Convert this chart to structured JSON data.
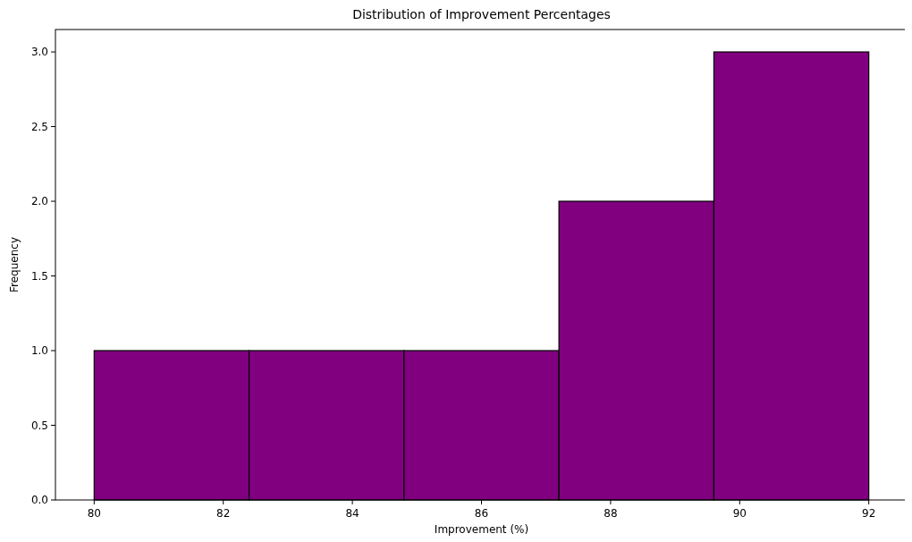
{
  "chart_data": {
    "type": "histogram",
    "title": "Distribution of Improvement Percentages",
    "xlabel": "Improvement (%)",
    "ylabel": "Frequency",
    "bins": [
      80,
      82.4,
      84.8,
      87.2,
      89.6,
      92
    ],
    "values": [
      1,
      1,
      1,
      2,
      3
    ],
    "color": "#800080",
    "xlim": [
      79.4,
      92.6
    ],
    "xticks": [
      80,
      82,
      84,
      86,
      88,
      90,
      92
    ],
    "ylim": [
      0,
      3.15
    ],
    "yticks": [
      {
        "value": 0,
        "label": "0.0"
      },
      {
        "value": 0.5,
        "label": "0.5"
      },
      {
        "value": 1,
        "label": "1.0"
      },
      {
        "value": 1.5,
        "label": "1.5"
      },
      {
        "value": 2,
        "label": "2.0"
      },
      {
        "value": 2.5,
        "label": "2.5"
      },
      {
        "value": 3,
        "label": "3.0"
      }
    ],
    "grid": false
  }
}
